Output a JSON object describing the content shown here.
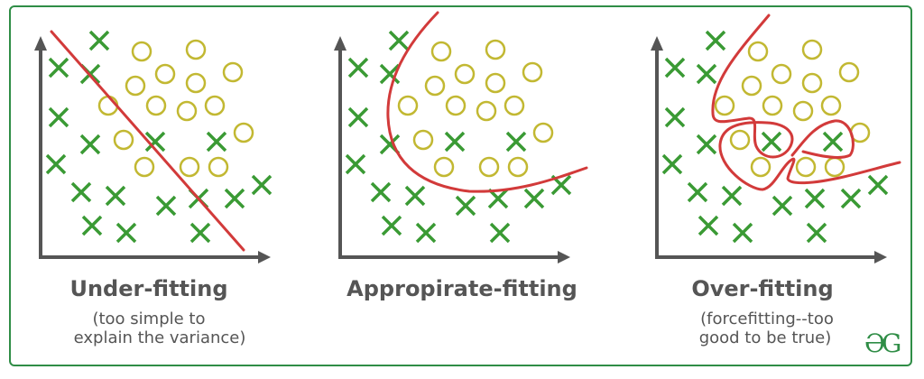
{
  "panels": [
    {
      "title": "Under-fitting",
      "subtitle_line1": "(too simple to",
      "subtitle_line2": "explain the variance)"
    },
    {
      "title": "Appropirate-fitting",
      "subtitle_line1": "",
      "subtitle_line2": ""
    },
    {
      "title": "Over-fitting",
      "subtitle_line1": "(forcefitting--too",
      "subtitle_line2": "good to be true)"
    }
  ],
  "logo": "GG",
  "colors": {
    "cross": "#3a9a34",
    "circle": "#c2b832",
    "fit_curve": "#d23a3a",
    "axis": "#555555",
    "border": "#2f8d46"
  }
}
